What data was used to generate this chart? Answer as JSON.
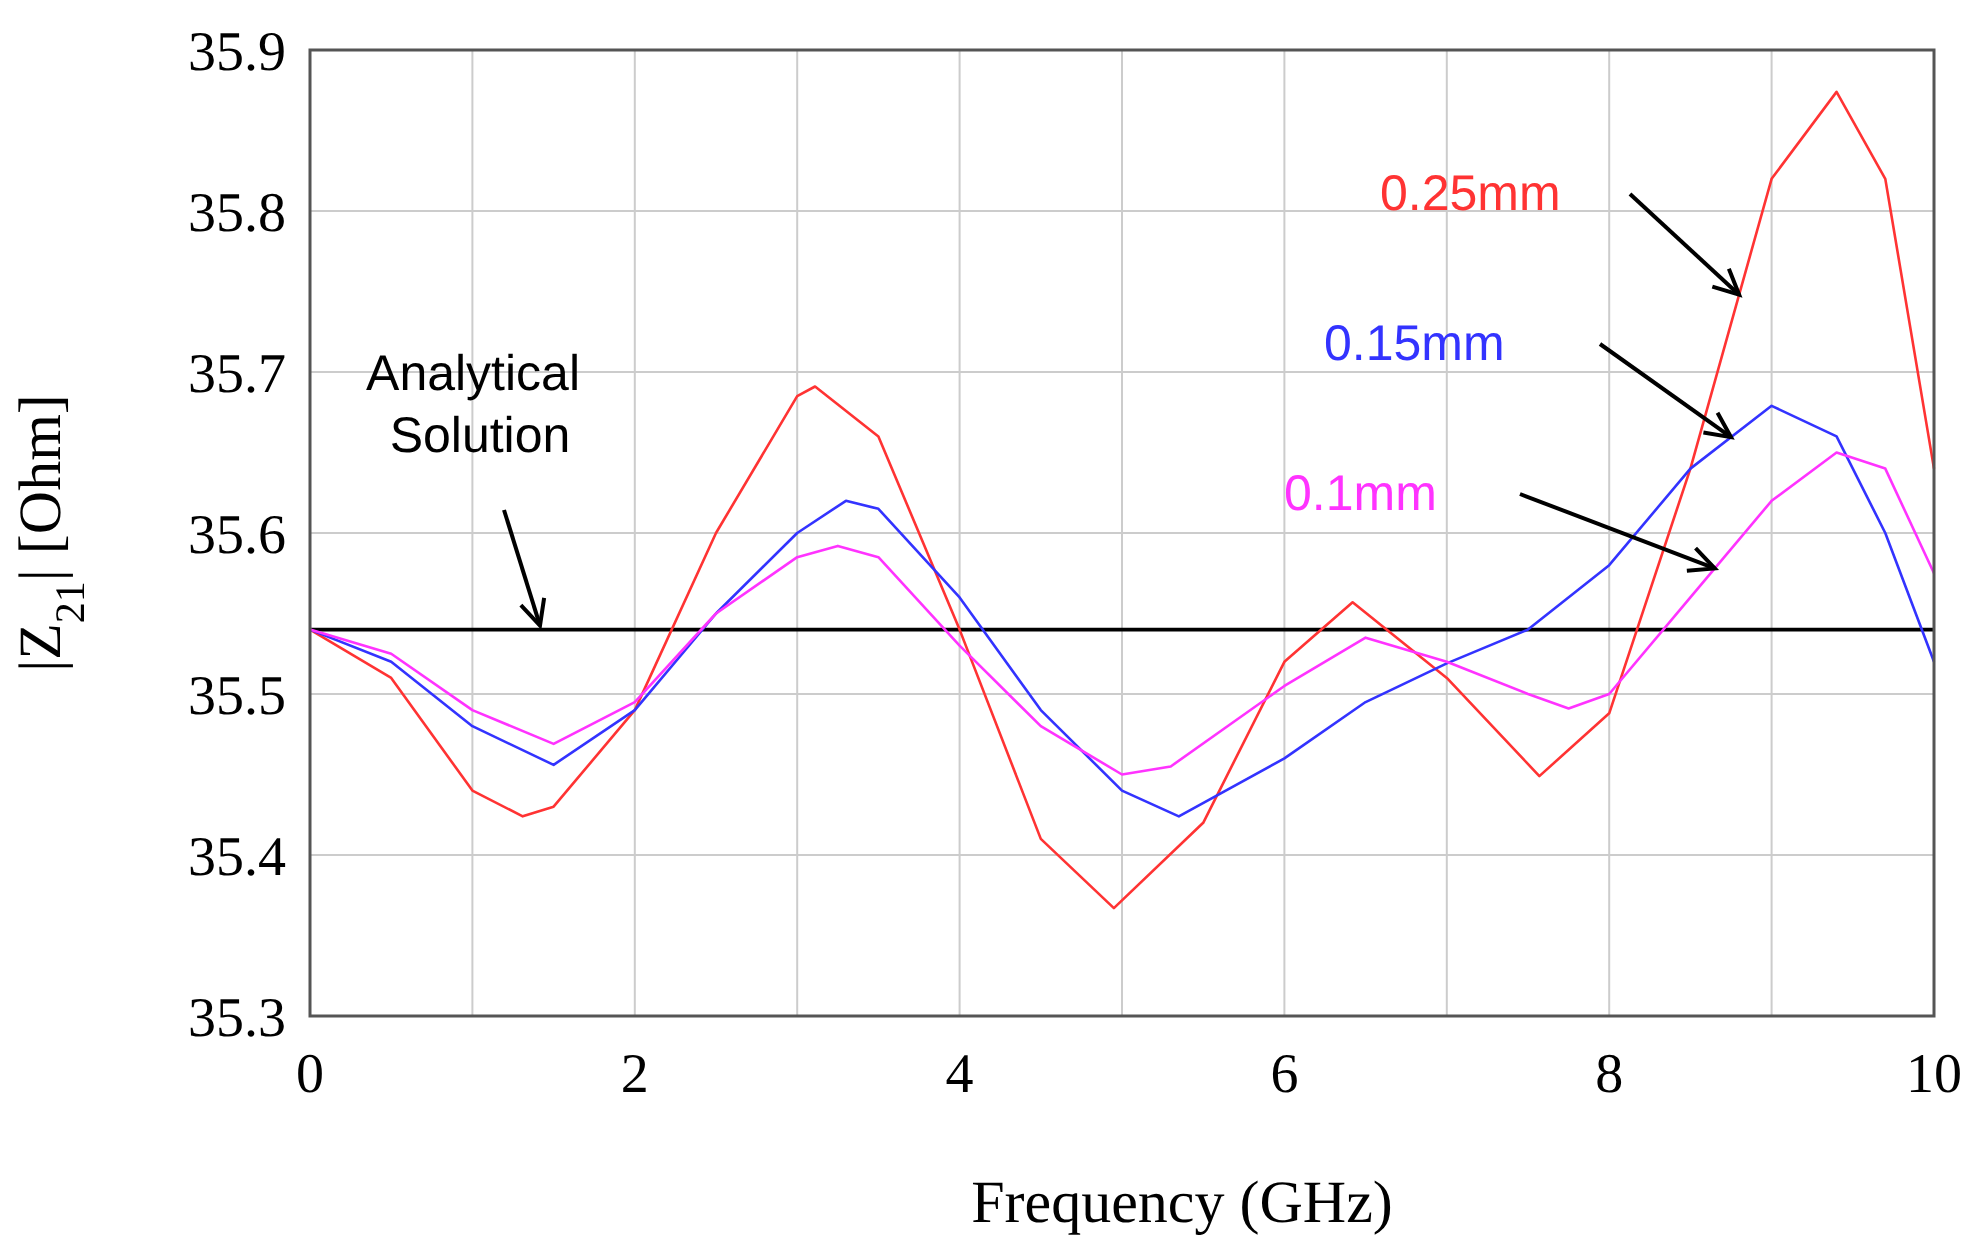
{
  "chart_data": {
    "type": "line",
    "xlabel": "Frequency (GHz)",
    "ylabel": "|Z$_{21}$| [Ohm]",
    "xlim": [
      0,
      10
    ],
    "ylim": [
      35.3,
      35.9
    ],
    "xticks": [
      0,
      {
        "value": 1,
        "label": null
      },
      2,
      {
        "value": 3,
        "label": null
      },
      4,
      {
        "value": 5,
        "label": null
      },
      6,
      {
        "value": 7,
        "label": null
      },
      8,
      {
        "value": 9,
        "label": null
      },
      10
    ],
    "yticks": [
      35.3,
      35.4,
      35.5,
      35.6,
      35.7,
      35.8,
      35.9
    ],
    "grid": true,
    "legend": false,
    "line_style": "solid",
    "marker": "none",
    "ref_lines": [
      {
        "axis": "y",
        "value": 35.54,
        "label": "Analytical Solution",
        "color": "#000000"
      }
    ],
    "series": [
      {
        "name": "0.25mm",
        "color": "#ff3333",
        "x": [
          0,
          0.5,
          1,
          1.31,
          1.5,
          2,
          2.5,
          3,
          3.11,
          3.5,
          4,
          4.5,
          4.95,
          5.5,
          6,
          6.42,
          7,
          7.57,
          8,
          8.5,
          9,
          9.4,
          9.7,
          10
        ],
        "values": [
          35.54,
          35.51,
          35.44,
          35.424,
          35.43,
          35.49,
          35.6,
          35.685,
          35.691,
          35.66,
          35.54,
          35.41,
          35.367,
          35.42,
          35.52,
          35.557,
          35.51,
          35.449,
          35.488,
          35.64,
          35.82,
          35.874,
          35.82,
          35.64
        ]
      },
      {
        "name": "0.15mm",
        "color": "#3333ff",
        "x": [
          0,
          0.5,
          1,
          1.5,
          2,
          2.5,
          3,
          3.3,
          3.5,
          4,
          4.5,
          5,
          5.35,
          6,
          6.5,
          7,
          7.5,
          8,
          8.5,
          9,
          9.4,
          9.7,
          10
        ],
        "values": [
          35.54,
          35.52,
          35.48,
          35.456,
          35.49,
          35.55,
          35.6,
          35.62,
          35.615,
          35.56,
          35.49,
          35.44,
          35.424,
          35.46,
          35.495,
          35.519,
          35.54,
          35.58,
          35.64,
          35.679,
          35.66,
          35.6,
          35.52
        ]
      },
      {
        "name": "0.1mm",
        "color": "#ff33ff",
        "x": [
          0,
          0.5,
          1,
          1.5,
          2,
          2.5,
          3,
          3.25,
          3.5,
          4,
          4.5,
          5,
          5.3,
          6,
          6.5,
          7,
          7.5,
          7.75,
          8,
          8.5,
          9,
          9.4,
          9.7,
          10
        ],
        "values": [
          35.54,
          35.525,
          35.49,
          35.469,
          35.495,
          35.55,
          35.585,
          35.592,
          35.585,
          35.53,
          35.48,
          35.45,
          35.455,
          35.505,
          35.535,
          35.52,
          35.5,
          35.491,
          35.5,
          35.56,
          35.62,
          35.65,
          35.64,
          35.575
        ]
      }
    ]
  }
}
